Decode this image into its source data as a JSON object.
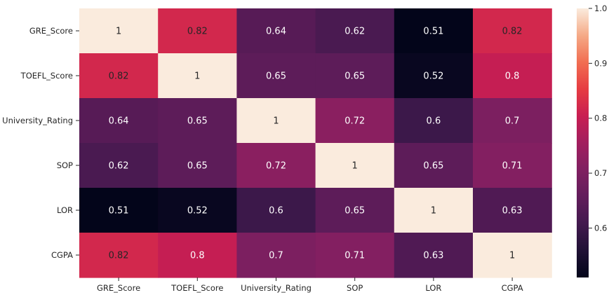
{
  "chart_data": {
    "type": "heatmap",
    "x_labels": [
      "GRE_Score",
      "TOEFL_Score",
      "University_Rating",
      "SOP",
      "LOR",
      "CGPA"
    ],
    "y_labels": [
      "GRE_Score",
      "TOEFL_Score",
      "University_Rating",
      "SOP",
      "LOR",
      "CGPA"
    ],
    "values": [
      [
        1,
        0.82,
        0.64,
        0.62,
        0.51,
        0.82
      ],
      [
        0.82,
        1,
        0.65,
        0.65,
        0.52,
        0.8
      ],
      [
        0.64,
        0.65,
        1,
        0.72,
        0.6,
        0.7
      ],
      [
        0.62,
        0.65,
        0.72,
        1,
        0.65,
        0.71
      ],
      [
        0.51,
        0.52,
        0.6,
        0.65,
        1,
        0.63
      ],
      [
        0.82,
        0.8,
        0.7,
        0.71,
        0.63,
        1
      ]
    ],
    "value_labels": [
      [
        "1",
        "0.82",
        "0.64",
        "0.62",
        "0.51",
        "0.82"
      ],
      [
        "0.82",
        "1",
        "0.65",
        "0.65",
        "0.52",
        "0.8"
      ],
      [
        "0.64",
        "0.65",
        "1",
        "0.72",
        "0.6",
        "0.7"
      ],
      [
        "0.62",
        "0.65",
        "0.72",
        "1",
        "0.65",
        "0.71"
      ],
      [
        "0.51",
        "0.52",
        "0.6",
        "0.65",
        "1",
        "0.63"
      ],
      [
        "0.82",
        "0.8",
        "0.7",
        "0.71",
        "0.63",
        "1"
      ]
    ],
    "colorbar": {
      "ticks": [
        0.6,
        0.7,
        0.8,
        0.9,
        1.0
      ],
      "tick_labels": [
        "0.6",
        "0.7",
        "0.8",
        "0.9",
        "1.0"
      ],
      "range": [
        0.51,
        1.0
      ],
      "colormap": "rocket"
    },
    "annotations": true,
    "grid": false,
    "title": "",
    "xlabel": "",
    "ylabel": ""
  }
}
